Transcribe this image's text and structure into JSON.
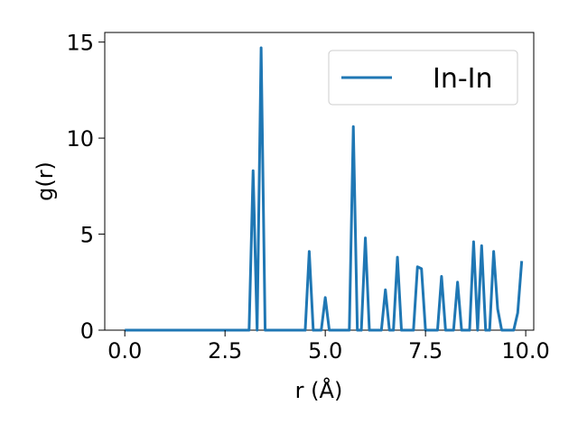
{
  "chart_data": {
    "type": "line",
    "title": "",
    "xlabel": "r (Å)",
    "ylabel": "g(r)",
    "xlim": [
      -0.5,
      10.2
    ],
    "ylim": [
      0,
      15.5
    ],
    "xticks": [
      0.0,
      2.5,
      5.0,
      7.5,
      10.0
    ],
    "xtick_labels": [
      "0.0",
      "2.5",
      "5.0",
      "7.5",
      "10.0"
    ],
    "yticks": [
      0,
      5,
      10,
      15
    ],
    "ytick_labels": [
      "0",
      "5",
      "10",
      "15"
    ],
    "grid": false,
    "legend_position": "top-right",
    "series": [
      {
        "name": "In-In",
        "color": "#1f77b4",
        "points": [
          [
            0.0,
            0
          ],
          [
            0.5,
            0
          ],
          [
            1.0,
            0
          ],
          [
            1.5,
            0
          ],
          [
            2.0,
            0
          ],
          [
            2.5,
            0
          ],
          [
            3.0,
            0
          ],
          [
            3.1,
            0
          ],
          [
            3.2,
            8.3
          ],
          [
            3.3,
            0
          ],
          [
            3.4,
            14.7
          ],
          [
            3.5,
            0
          ],
          [
            4.0,
            0
          ],
          [
            4.5,
            0
          ],
          [
            4.6,
            4.1
          ],
          [
            4.7,
            0
          ],
          [
            4.8,
            0
          ],
          [
            4.9,
            0
          ],
          [
            5.0,
            1.7
          ],
          [
            5.1,
            0
          ],
          [
            5.5,
            0
          ],
          [
            5.6,
            0
          ],
          [
            5.7,
            10.6
          ],
          [
            5.8,
            0
          ],
          [
            5.9,
            0
          ],
          [
            6.0,
            4.8
          ],
          [
            6.1,
            0
          ],
          [
            6.3,
            0
          ],
          [
            6.4,
            0
          ],
          [
            6.5,
            2.1
          ],
          [
            6.6,
            0
          ],
          [
            6.7,
            0
          ],
          [
            6.8,
            3.8
          ],
          [
            6.9,
            0
          ],
          [
            7.0,
            0
          ],
          [
            7.2,
            0
          ],
          [
            7.3,
            3.3
          ],
          [
            7.4,
            3.2
          ],
          [
            7.5,
            0
          ],
          [
            7.8,
            0
          ],
          [
            7.9,
            2.8
          ],
          [
            8.0,
            0
          ],
          [
            8.2,
            0
          ],
          [
            8.3,
            2.5
          ],
          [
            8.4,
            0
          ],
          [
            8.6,
            0
          ],
          [
            8.7,
            4.6
          ],
          [
            8.8,
            0
          ],
          [
            8.9,
            4.4
          ],
          [
            9.0,
            0
          ],
          [
            9.1,
            0
          ],
          [
            9.2,
            4.1
          ],
          [
            9.3,
            1.1
          ],
          [
            9.4,
            0
          ],
          [
            9.7,
            0
          ],
          [
            9.8,
            0.9
          ],
          [
            9.9,
            3.6
          ]
        ]
      }
    ]
  }
}
